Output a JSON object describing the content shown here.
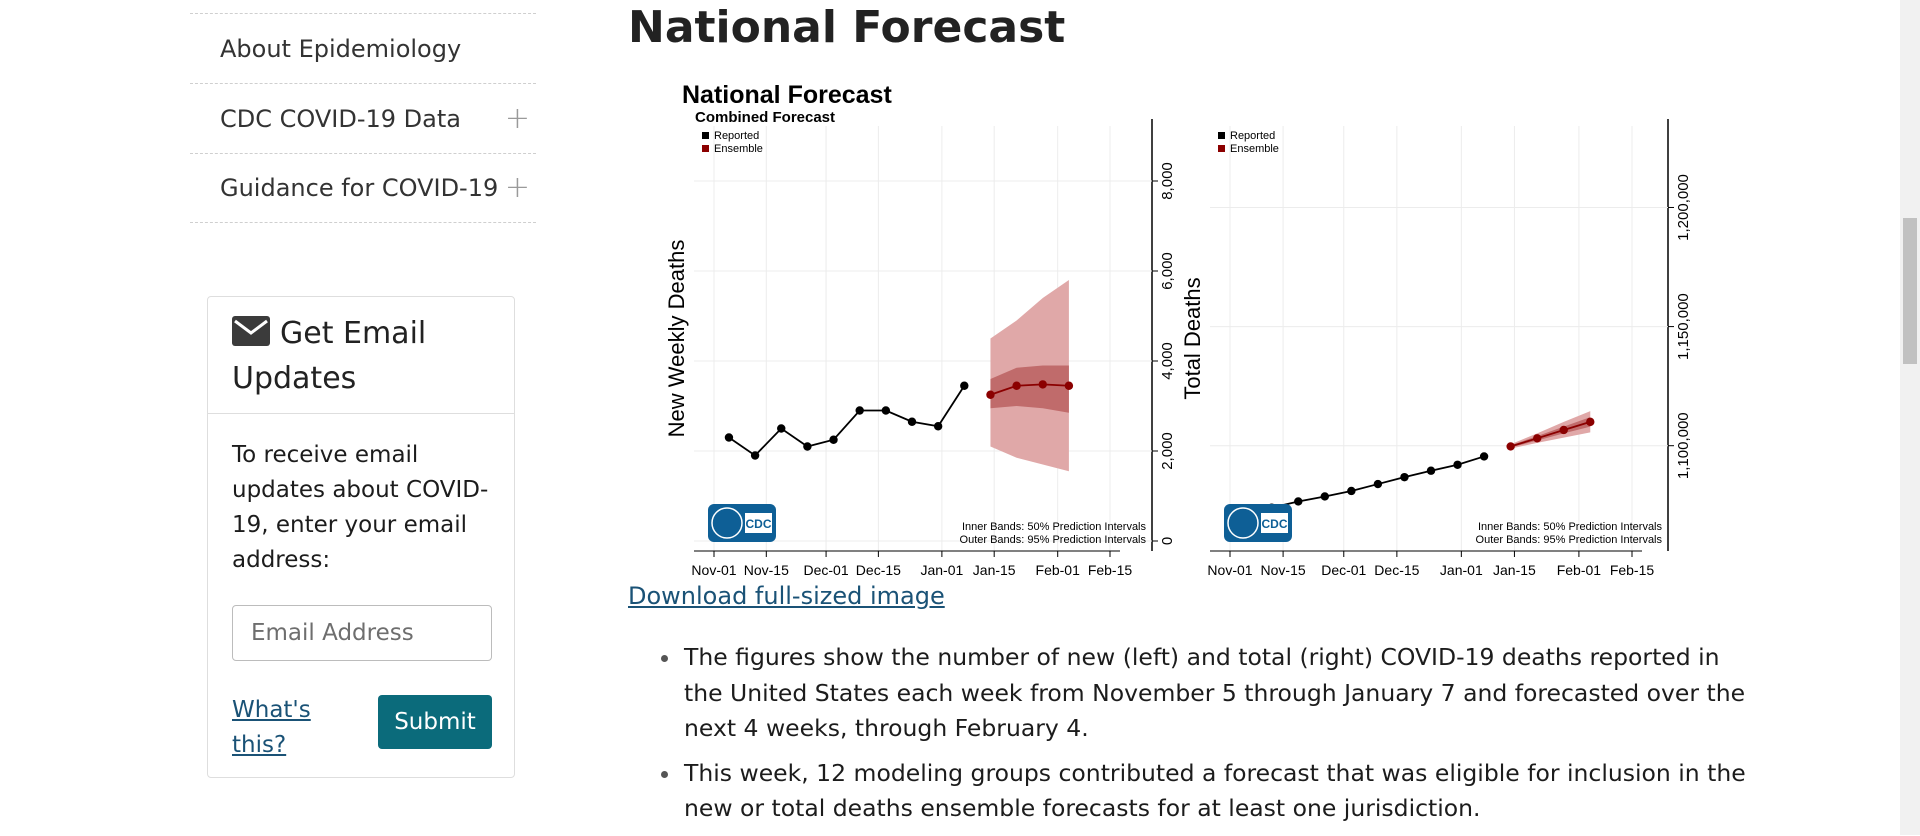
{
  "sidebar": {
    "items": [
      {
        "label": "About Epidemiology",
        "expandable": false
      },
      {
        "label": "CDC COVID-19 Data",
        "expandable": true
      },
      {
        "label": "Guidance for COVID-19",
        "expandable": true
      }
    ],
    "email_card": {
      "title": "Get Email Updates",
      "description": "To receive email updates about COVID-19, enter your email address:",
      "input_placeholder": "Email Address",
      "whats_this": "What's this?",
      "submit_label": "Submit"
    }
  },
  "main": {
    "heading": "National Forecast",
    "download_link": "Download full-sized image",
    "bullets": [
      "The figures show the number of new (left) and total (right) COVID-19 deaths reported in the United States each week from November 5 through January 7 and forecasted over the next 4 weeks, through February 4.",
      "This week, 12 modeling groups contributed a forecast that was eligible for inclusion in the new or total deaths ensemble forecasts for at least one jurisdiction."
    ]
  },
  "figure_text": {
    "title": "National Forecast",
    "subtitle": "Combined Forecast",
    "legend": [
      "Reported",
      "Ensemble"
    ],
    "bands_note": [
      "Inner Bands: 50% Prediction Intervals",
      "Outer Bands: 95% Prediction Intervals"
    ],
    "logo_text": "CDC"
  },
  "colors": {
    "reported": "#000000",
    "ensemble": "#8b0000",
    "inner_band": "#c06b6b",
    "outer_band": "#e0a8a8",
    "submit": "#0b6b7b",
    "link": "#1a5276"
  },
  "chart_data": [
    {
      "type": "line",
      "ylabel": "New Weekly Deaths",
      "xticks": [
        "Nov-01",
        "Nov-15",
        "Dec-01",
        "Dec-15",
        "Jan-01",
        "Jan-15",
        "Feb-01",
        "Feb-15"
      ],
      "yticks": [
        0,
        2000,
        4000,
        6000,
        8000
      ],
      "ylim": [
        0,
        9000
      ],
      "series": [
        {
          "name": "Reported",
          "x": [
            "Nov-05",
            "Nov-12",
            "Nov-19",
            "Nov-26",
            "Dec-03",
            "Dec-10",
            "Dec-17",
            "Dec-24",
            "Dec-31",
            "Jan-07"
          ],
          "values": [
            2300,
            1900,
            2500,
            2100,
            2250,
            2900,
            2900,
            2650,
            2550,
            3450
          ]
        },
        {
          "name": "Ensemble",
          "x": [
            "Jan-14",
            "Jan-21",
            "Jan-28",
            "Feb-04"
          ],
          "values": [
            3250,
            3450,
            3480,
            3450
          ],
          "inner_lower": [
            2950,
            3000,
            2950,
            2850
          ],
          "inner_upper": [
            3600,
            3850,
            3900,
            3900
          ],
          "outer_lower": [
            2100,
            1850,
            1700,
            1550
          ],
          "outer_upper": [
            4500,
            4900,
            5400,
            5800
          ]
        }
      ]
    },
    {
      "type": "line",
      "ylabel": "Total Deaths",
      "xticks": [
        "Nov-01",
        "Nov-15",
        "Dec-01",
        "Dec-15",
        "Jan-01",
        "Jan-15",
        "Feb-01",
        "Feb-15"
      ],
      "yticks": [
        1100000,
        1150000,
        1200000
      ],
      "ylim": [
        1060000,
        1230000
      ],
      "series": [
        {
          "name": "Reported",
          "x": [
            "Nov-05",
            "Nov-12",
            "Nov-19",
            "Nov-26",
            "Dec-03",
            "Dec-10",
            "Dec-17",
            "Dec-24",
            "Dec-31",
            "Jan-07"
          ],
          "values": [
            1072000,
            1074000,
            1076600,
            1078700,
            1081000,
            1083900,
            1086800,
            1089500,
            1092000,
            1095500
          ]
        },
        {
          "name": "Ensemble",
          "x": [
            "Jan-14",
            "Jan-21",
            "Jan-28",
            "Feb-04"
          ],
          "values": [
            1099700,
            1103100,
            1106600,
            1110000
          ],
          "inner_lower": [
            1099200,
            1102200,
            1105200,
            1108000
          ],
          "inner_upper": [
            1100200,
            1104000,
            1108000,
            1112000
          ],
          "outer_lower": [
            1098800,
            1101200,
            1103400,
            1105600
          ],
          "outer_upper": [
            1100600,
            1105200,
            1110000,
            1114500
          ]
        }
      ]
    }
  ]
}
